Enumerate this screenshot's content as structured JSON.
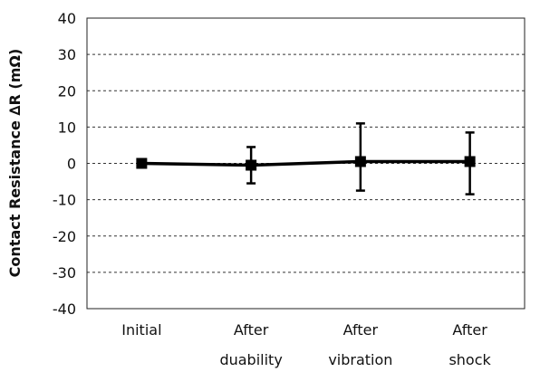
{
  "chart_data": {
    "type": "line",
    "title": "",
    "xlabel": "",
    "ylabel": "Contact Resistance ∆R (mΩ)",
    "ylim": [
      -40,
      40
    ],
    "yticks": [
      40,
      30,
      20,
      10,
      0,
      -10,
      -20,
      -30,
      -40
    ],
    "grid": true,
    "legend": "none",
    "categories": [
      [
        "Initial"
      ],
      [
        "After",
        "duability"
      ],
      [
        "After",
        "vibration"
      ],
      [
        "After",
        "shock"
      ]
    ],
    "series": [
      {
        "color": "#000000",
        "marker": "square",
        "values": [
          0,
          -0.5,
          0.5,
          0.5
        ],
        "error_low": [
          0,
          -5.5,
          -7.5,
          -8.5
        ],
        "error_high": [
          0,
          4.5,
          11,
          8.5
        ]
      }
    ]
  }
}
